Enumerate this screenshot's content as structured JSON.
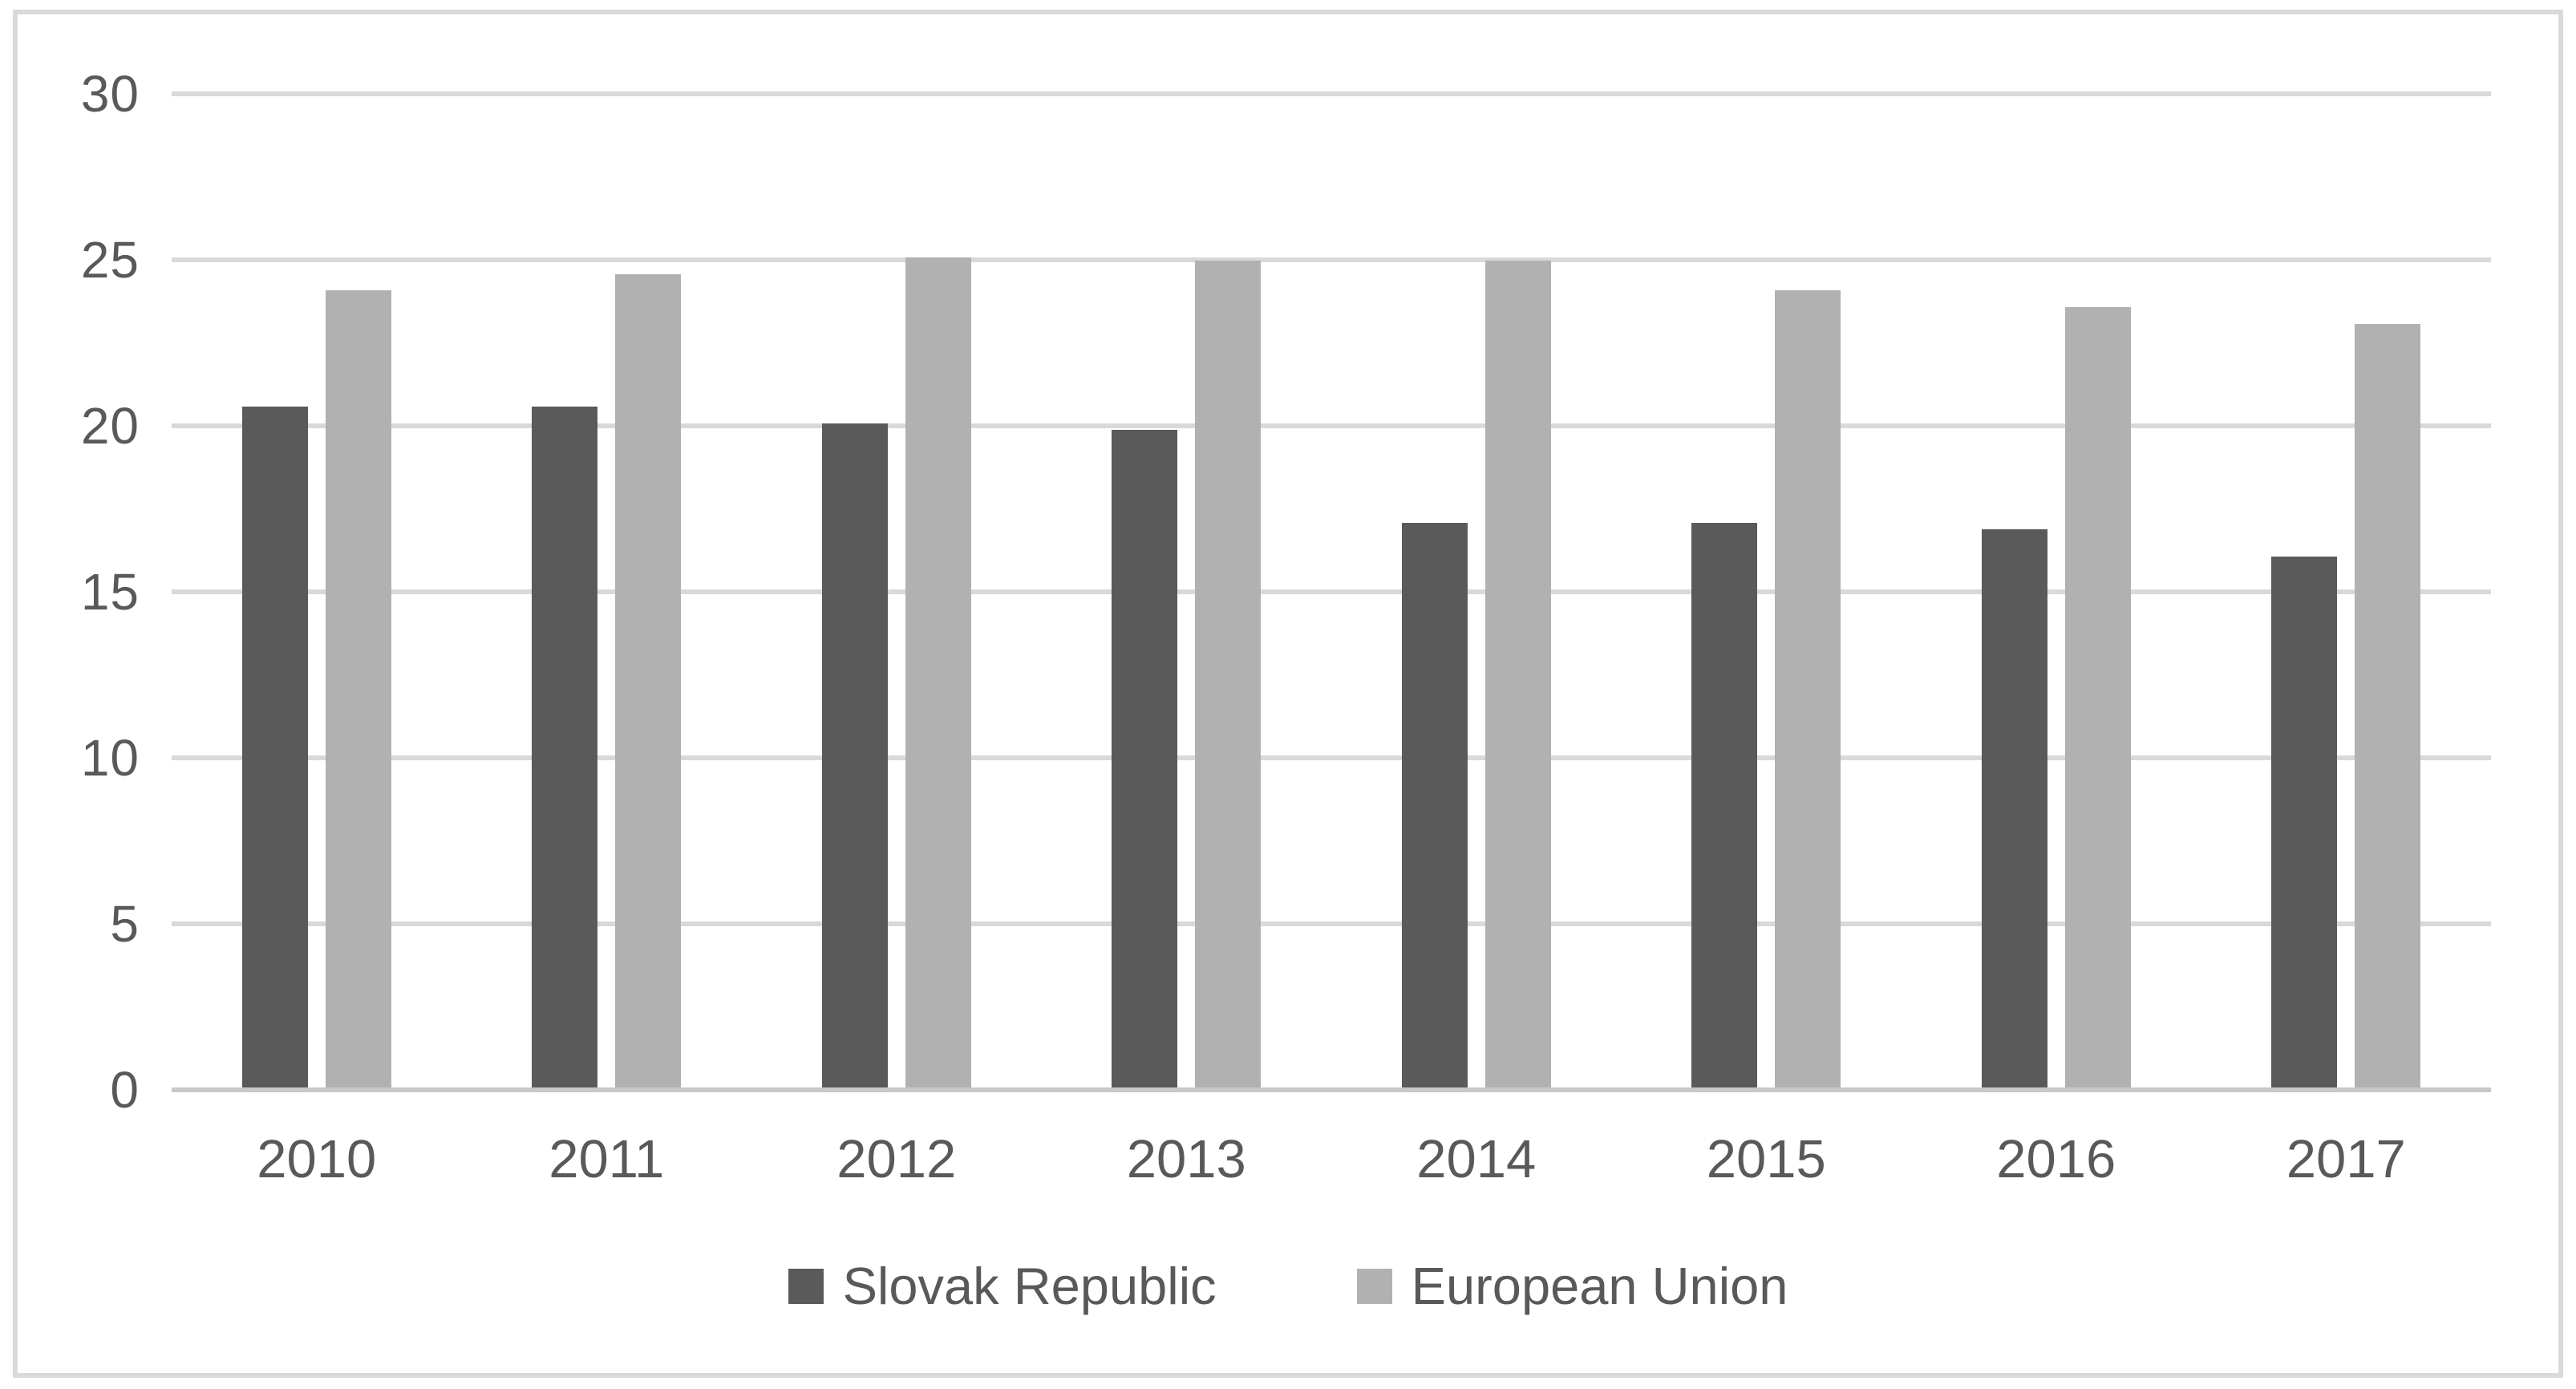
{
  "chart_data": {
    "type": "bar",
    "title": "",
    "xlabel": "",
    "ylabel": "",
    "categories": [
      "2010",
      "2011",
      "2012",
      "2013",
      "2014",
      "2015",
      "2016",
      "2017"
    ],
    "series": [
      {
        "name": "Slovak Republic",
        "color": "#5a5a5a",
        "values": [
          20.5,
          20.5,
          20.0,
          19.8,
          17.0,
          17.0,
          16.8,
          16.0
        ]
      },
      {
        "name": "European Union",
        "color": "#b1b1b1",
        "values": [
          24.0,
          24.5,
          25.0,
          24.9,
          24.9,
          24.0,
          23.5,
          23.0
        ]
      }
    ],
    "ylim": [
      0,
      30
    ],
    "yticks": [
      0,
      5,
      10,
      15,
      20,
      25,
      30
    ],
    "grid": "horizontal",
    "legend_position": "bottom",
    "colors": {
      "gridline": "#d9d9d9",
      "axis_baseline": "#c9c9c9",
      "tick_text": "#595959",
      "frame_border": "#d9d9d9",
      "background": "#ffffff"
    }
  }
}
